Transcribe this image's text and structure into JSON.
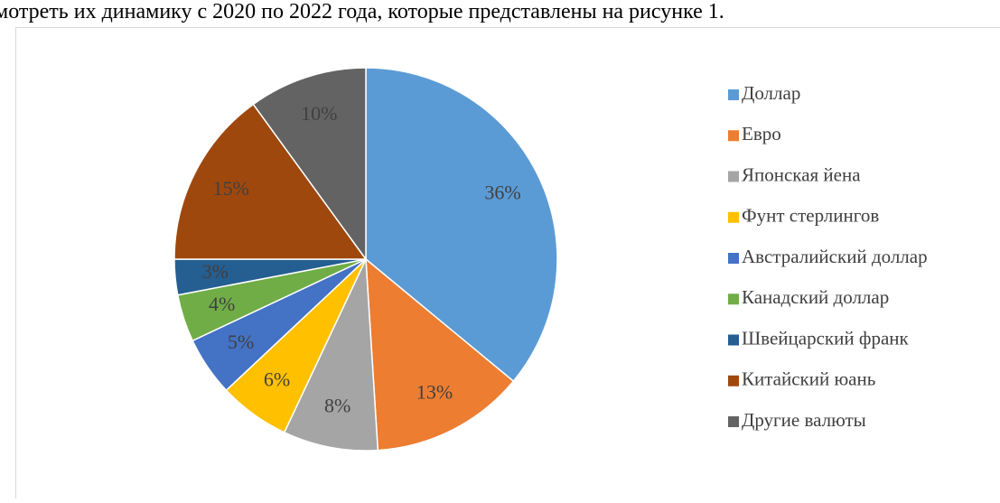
{
  "caption_text": "мотреть их динамику с 2020 по 2022 года, которые представлены на рисунке 1.",
  "chart_data": {
    "type": "pie",
    "categories": [
      "Доллар",
      "Евро",
      "Японская йена",
      "Фунт стерлингов",
      "Австралийский доллар",
      "Канадский доллар",
      "Швейцарский франк",
      "Китайский юань",
      "Другие валюты"
    ],
    "values": [
      36,
      13,
      8,
      6,
      5,
      4,
      3,
      15,
      10
    ],
    "value_labels": [
      "36%",
      "13%",
      "8%",
      "6%",
      "5%",
      "4%",
      "3%",
      "15%",
      "10%"
    ],
    "colors": [
      "#5b9bd5",
      "#ed7d31",
      "#a5a5a5",
      "#ffc000",
      "#4472c4",
      "#70ad47",
      "#255e91",
      "#9e480e",
      "#636363"
    ],
    "legend": "right"
  }
}
